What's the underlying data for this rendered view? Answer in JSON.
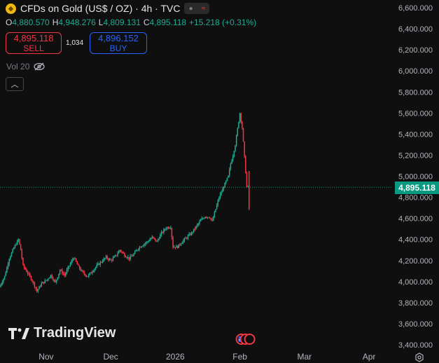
{
  "header": {
    "title": "CFDs on Gold (US$ / OZ) · 4h · TVC",
    "ohlc": [
      {
        "label": "O",
        "value": "4,880.570"
      },
      {
        "label": "H",
        "value": "4,948.276"
      },
      {
        "label": "L",
        "value": "4,809.131"
      },
      {
        "label": "C",
        "value": "4,895.118"
      }
    ],
    "change": "+15.218 (+0.31%)"
  },
  "trade": {
    "sell_price": "4,895.118",
    "sell_label": "SELL",
    "spread": "1,034",
    "buy_price": "4,896.152",
    "buy_label": "BUY"
  },
  "volume_label": "Vol 20",
  "logo_text": "TradingView",
  "current_price_label": "4,895.118",
  "colors": {
    "up": "#22ab94",
    "down": "#f23645",
    "background": "#0f0f0f",
    "buy": "#2962ff",
    "price_tag": "#089981"
  },
  "chart_data": {
    "type": "candlestick",
    "title": "CFDs on Gold (US$ / OZ) · 4h · TVC",
    "y_axis_ticks": [
      3400,
      3600,
      3800,
      4000,
      4200,
      4400,
      4600,
      4800,
      5000,
      5200,
      5400,
      5600,
      5800,
      6000,
      6200,
      6400,
      6600
    ],
    "y_tick_labels": [
      "3,400.000",
      "3,600.000",
      "3,800.000",
      "4,000.000",
      "4,200.000",
      "4,400.000",
      "4,600.000",
      "4,800.000",
      "5,000.000",
      "5,200.000",
      "5,400.000",
      "5,600.000",
      "5,800.000",
      "6,000.000",
      "6,200.000",
      "6,400.000",
      "6,600.000"
    ],
    "ylim": [
      3390,
      6615
    ],
    "x_axis_labels": [
      "Nov",
      "Dec",
      "2026",
      "Feb",
      "Mar",
      "Apr"
    ],
    "x_axis_label_index": [
      20,
      48,
      76,
      104,
      132,
      160
    ],
    "x_range": [
      0,
      170
    ],
    "current_price": 4895.118,
    "series": [
      {
        "name": "CFDs on Gold close (approx.)",
        "points": [
          [
            0,
            3960
          ],
          [
            2,
            4050
          ],
          [
            4,
            4220
          ],
          [
            6,
            4320
          ],
          [
            8,
            4400
          ],
          [
            9,
            4300
          ],
          [
            10,
            4150
          ],
          [
            12,
            4080
          ],
          [
            14,
            4010
          ],
          [
            16,
            3910
          ],
          [
            18,
            3980
          ],
          [
            20,
            4010
          ],
          [
            22,
            4060
          ],
          [
            24,
            3990
          ],
          [
            26,
            4110
          ],
          [
            28,
            4060
          ],
          [
            30,
            4150
          ],
          [
            32,
            4230
          ],
          [
            34,
            4140
          ],
          [
            36,
            4080
          ],
          [
            38,
            4050
          ],
          [
            40,
            4100
          ],
          [
            42,
            4150
          ],
          [
            44,
            4190
          ],
          [
            46,
            4230
          ],
          [
            48,
            4200
          ],
          [
            50,
            4240
          ],
          [
            52,
            4300
          ],
          [
            54,
            4250
          ],
          [
            56,
            4220
          ],
          [
            58,
            4260
          ],
          [
            60,
            4320
          ],
          [
            62,
            4350
          ],
          [
            64,
            4380
          ],
          [
            66,
            4420
          ],
          [
            68,
            4380
          ],
          [
            70,
            4460
          ],
          [
            72,
            4510
          ],
          [
            74,
            4520
          ],
          [
            75,
            4330
          ],
          [
            77,
            4330
          ],
          [
            79,
            4380
          ],
          [
            81,
            4420
          ],
          [
            83,
            4460
          ],
          [
            85,
            4520
          ],
          [
            87,
            4580
          ],
          [
            89,
            4620
          ],
          [
            91,
            4610
          ],
          [
            92,
            4570
          ],
          [
            93,
            4650
          ],
          [
            95,
            4800
          ],
          [
            97,
            4900
          ],
          [
            99,
            5000
          ],
          [
            100,
            5120
          ],
          [
            101,
            5200
          ],
          [
            102,
            5300
          ],
          [
            103,
            5450
          ],
          [
            104,
            5600
          ],
          [
            105,
            5460
          ],
          [
            106,
            5180
          ],
          [
            107,
            4900
          ],
          [
            108,
            4895
          ]
        ]
      }
    ],
    "annotations": [
      "Current price 4,895.118"
    ]
  }
}
